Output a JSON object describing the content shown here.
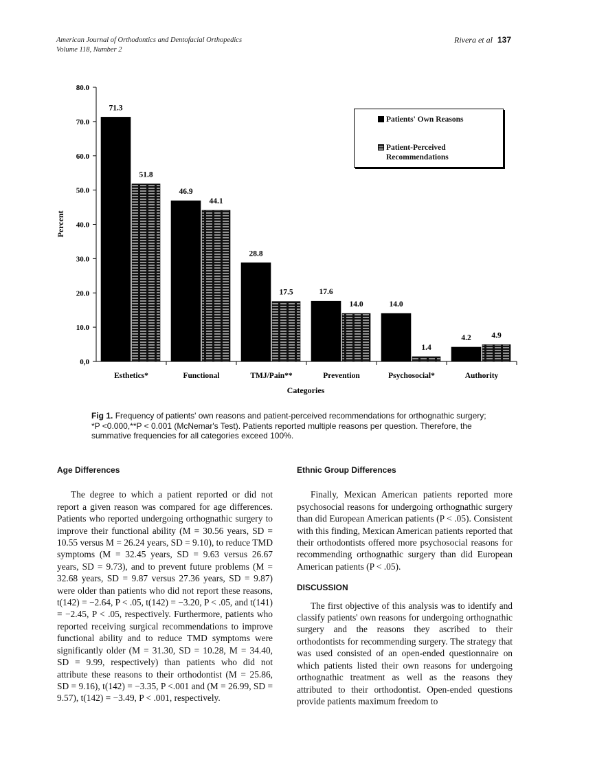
{
  "header": {
    "journal": "American Journal of Orthodontics and Dentofacial Orthopedics",
    "volume": "Volume 118, Number 2",
    "authors": "Rivera et al",
    "page": "137"
  },
  "chart_data": {
    "type": "bar",
    "categories": [
      "Esthetics*",
      "Functional",
      "TMJ/Pain**",
      "Prevention",
      "Psychosocial*",
      "Authority"
    ],
    "series": [
      {
        "name": "Patients' Own Reasons",
        "color": "#000000",
        "fill_pattern": "solid",
        "values": [
          71.3,
          46.9,
          28.8,
          17.6,
          14.0,
          4.2
        ],
        "value_labels": [
          "71.3",
          "46.9",
          "28.8",
          "17.6",
          "14.0",
          "4.2"
        ]
      },
      {
        "name": "Patient-Perceived Recommendations",
        "color": "#000000",
        "fill_pattern": "horizontal-lines",
        "values": [
          51.8,
          44.1,
          17.5,
          14.0,
          1.4,
          4.9
        ],
        "value_labels": [
          "51.8",
          "44.1",
          "17.5",
          "14.0",
          "1.4",
          "4.9"
        ]
      }
    ],
    "y_label": "Percent",
    "x_label": "Categories",
    "ylim": [
      0,
      80
    ],
    "yticks": [
      {
        "value": 0,
        "label": "0,0"
      },
      {
        "value": 10,
        "label": "10.0"
      },
      {
        "value": 20,
        "label": "20.0"
      },
      {
        "value": 30,
        "label": "30.0"
      },
      {
        "value": 40,
        "label": "40.0"
      },
      {
        "value": 50,
        "label": "50.0"
      },
      {
        "value": 60,
        "label": "60.0"
      },
      {
        "value": 70,
        "label": "70.0"
      },
      {
        "value": 80,
        "label": "80.0"
      }
    ],
    "legend": "top-right"
  },
  "caption": {
    "label": "Fig 1.",
    "text": "Frequency of patients' own reasons and patient-perceived recommendations for orthognathic surgery; *P <0.000,**P < 0.001 (McNemar's Test). Patients reported multiple reasons per question. Therefore, the summative frequencies for all categories exceed 100%."
  },
  "left_column": {
    "heading": "Age Differences",
    "paragraphs": [
      "The degree to which a patient reported or did not report a given reason was compared for age differences. Patients who reported undergoing orthognathic surgery to improve their functional ability (M = 30.56 years, SD = 10.55 versus M = 26.24 years, SD = 9.10), to reduce TMD symptoms (M = 32.45 years, SD = 9.63 versus 26.67 years, SD = 9.73), and to prevent future problems (M = 32.68 years, SD = 9.87 versus 27.36 years, SD = 9.87) were older than patients who did not report these reasons, t(142) = −2.64, P < .05, t(142) = −3.20, P < .05, and t(141) = −2.45, P < .05, respectively. Furthermore, patients who reported receiving surgical recommendations to improve functional ability and to reduce TMD symptoms were significantly older (M = 31.30, SD = 10.28, M = 34.40, SD = 9.99, respectively) than patients who did not attribute these reasons to their orthodontist (M = 25.86, SD = 9.16), t(142) = −3.35, P <.001 and (M = 26.99, SD = 9.57), t(142) = −3.49, P < .001, respectively."
    ]
  },
  "right_column": {
    "heading": "Ethnic Group Differences",
    "paragraphs": [
      "Finally, Mexican American patients reported more psychosocial reasons for undergoing orthognathic surgery than did European American patients (P < .05). Consistent with this finding, Mexican American patients reported that their orthodontists offered more psychosocial reasons for recommending orthognathic surgery than did European American patients (P < .05)."
    ],
    "heading2": "DISCUSSION",
    "paragraphs2": [
      "The first objective of this analysis was to identify and classify patients' own reasons for undergoing orthognathic surgery and the reasons they ascribed to their orthodontists for recommending surgery. The strategy that was used consisted of an open-ended questionnaire on which patients listed their own reasons for undergoing orthognathic treatment as well as the reasons they attributed to their orthodontist. Open-ended questions provide patients maximum freedom to"
    ]
  }
}
